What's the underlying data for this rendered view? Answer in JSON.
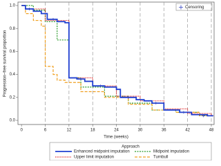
{
  "chart_data": {
    "type": "step",
    "x_label": "Time (weeks)",
    "y_label": "Progression−free survival proportion",
    "xlim": [
      -0.9,
      48.7
    ],
    "ylim": [
      -0.036,
      1.03
    ],
    "xticks": [
      0,
      6,
      12,
      18,
      24,
      30,
      36,
      42,
      48
    ],
    "yticks": [
      {
        "value": 0,
        "label": "0.0"
      },
      {
        "value": 0.2,
        "label": "0.2"
      },
      {
        "value": 0.4,
        "label": "0.4"
      },
      {
        "value": 0.6,
        "label": "0.6"
      },
      {
        "value": 0.8,
        "label": "0.8"
      },
      {
        "value": 1,
        "label": "1.0"
      }
    ],
    "vgrid": true,
    "legend_title": "Approach",
    "censor_label": "Censoring",
    "censor_color": "#3040c0",
    "series": [
      {
        "name": "Enhanced midpoint imputation",
        "color": "#1f3fd0",
        "width": 1.8,
        "dash": "none",
        "x": [
          0,
          1,
          3,
          5,
          6.5,
          9,
          11,
          12,
          14,
          16,
          18,
          21,
          24,
          25,
          29,
          31,
          33,
          36,
          40,
          43,
          47,
          48.5
        ],
        "values": [
          1.0,
          0.97,
          0.95,
          0.93,
          0.88,
          0.86,
          0.85,
          0.37,
          0.36,
          0.34,
          0.3,
          0.29,
          0.27,
          0.2,
          0.18,
          0.17,
          0.15,
          0.09,
          0.07,
          0.05,
          0.04,
          0.04
        ],
        "censor_x": [
          2,
          8,
          15,
          20,
          27,
          34,
          41,
          46
        ],
        "censor_y": [
          0.97,
          0.88,
          0.36,
          0.3,
          0.2,
          0.15,
          0.07,
          0.04
        ]
      },
      {
        "name": "Midpoint imputation",
        "color": "#2a9a2a",
        "width": 1.2,
        "dash": "2,1.5",
        "x": [
          0,
          3,
          6,
          9,
          12,
          15,
          21,
          27,
          33,
          39,
          45,
          48.5
        ],
        "values": [
          1.0,
          0.96,
          0.86,
          0.7,
          0.37,
          0.29,
          0.21,
          0.15,
          0.09,
          0.07,
          0.04,
          0.04
        ]
      },
      {
        "name": "Upper limit imputation",
        "color": "#e02020",
        "width": 1.2,
        "dash": "1.2,1.2",
        "x": [
          0,
          1,
          6,
          12,
          18,
          24,
          30,
          36,
          42,
          48,
          48.5
        ],
        "values": [
          1.0,
          0.97,
          0.87,
          0.37,
          0.3,
          0.21,
          0.17,
          0.1,
          0.06,
          0.04,
          0.04
        ]
      },
      {
        "name": "Turnbull",
        "color": "#f0a020",
        "width": 1.2,
        "dash": "4,2",
        "x": [
          0,
          1,
          3,
          5,
          6,
          8,
          9,
          11,
          15,
          21,
          27,
          33,
          39,
          45,
          48.5
        ],
        "values": [
          1.0,
          0.93,
          0.87,
          0.82,
          0.47,
          0.4,
          0.35,
          0.33,
          0.25,
          0.2,
          0.14,
          0.09,
          0.07,
          0.04,
          0.04
        ]
      }
    ]
  }
}
